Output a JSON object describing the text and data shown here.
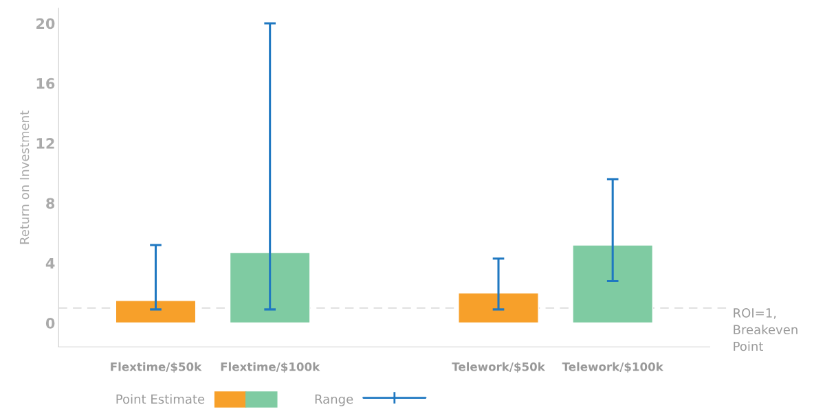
{
  "chart_data": {
    "type": "bar",
    "ylabel": "Return on Investment",
    "categories": [
      "Flextime/$50k",
      "Flextime/$100k",
      null,
      "Telework/$50k",
      "Telework/$100k"
    ],
    "series": [
      {
        "name": "Point Estimate",
        "colors": [
          "#f7a02a",
          "#7fcba2",
          null,
          "#f7a02a",
          "#7fcba2"
        ],
        "values": [
          1.5,
          4.7,
          null,
          2.0,
          5.2
        ],
        "errors": [
          [
            0.9,
            5.2
          ],
          [
            0.9,
            20
          ],
          null,
          [
            0.9,
            4.3
          ],
          [
            2.8,
            9.6
          ]
        ]
      }
    ],
    "annotations": [
      "Range"
    ],
    "ylim": [
      -1.6,
      21
    ],
    "yticks": [
      0,
      4,
      8,
      12,
      16,
      20
    ],
    "grid": false,
    "legend": "bottom",
    "ref_lines": [
      {
        "axis": "y",
        "value": 1,
        "label": "ROI=1,\nBreakeven\nPoint",
        "color": "#dddddd",
        "line_style": "dashed"
      }
    ]
  }
}
